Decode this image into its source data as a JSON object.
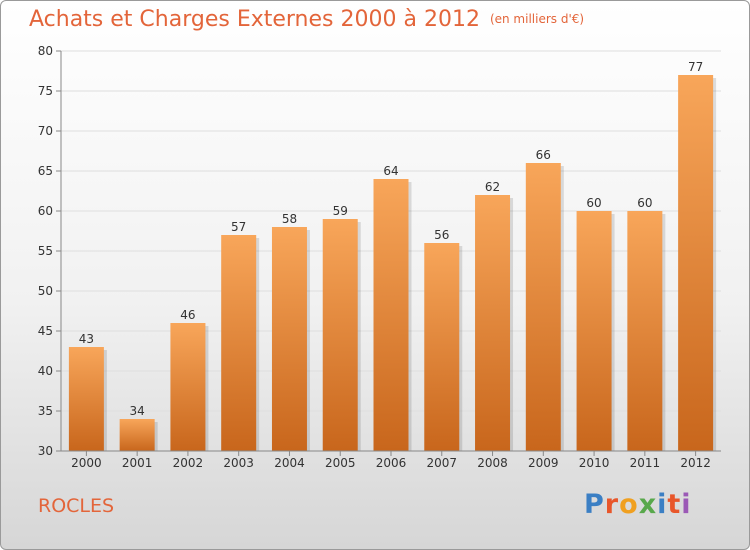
{
  "header": {
    "title": "Achats et Charges Externes 2000 à 2012",
    "unit": "(en milliers d'€)"
  },
  "footer": {
    "commune": "ROCLES",
    "logo_text": "Proxiti",
    "logo_colors": [
      "#3b7fc4",
      "#e8562a",
      "#f0a020",
      "#58a84b",
      "#3b7fc4",
      "#e8562a",
      "#9b59b6"
    ]
  },
  "chart_data": {
    "type": "bar",
    "title": "Achats et Charges Externes 2000 à 2012",
    "categories": [
      "2000",
      "2001",
      "2002",
      "2003",
      "2004",
      "2005",
      "2006",
      "2007",
      "2008",
      "2009",
      "2010",
      "2011",
      "2012"
    ],
    "values": [
      43,
      34,
      46,
      57,
      58,
      59,
      64,
      56,
      62,
      66,
      60,
      60,
      77
    ],
    "ylim": [
      30,
      80
    ],
    "yticks": [
      30,
      35,
      40,
      45,
      50,
      55,
      60,
      65,
      70,
      75,
      80
    ],
    "grid": true,
    "bar_color_top": "#f8a65a",
    "bar_color_bottom": "#c8661c"
  }
}
